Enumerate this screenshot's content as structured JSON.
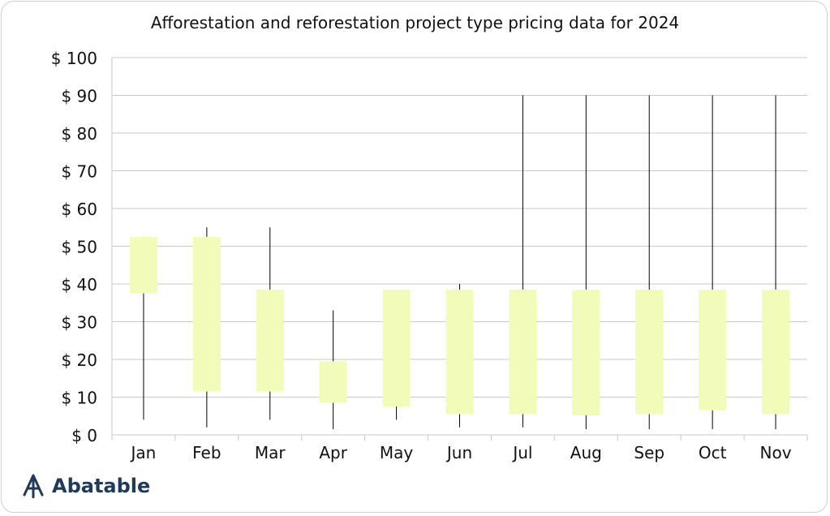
{
  "title": "Afforestation and reforestation project type pricing data for 2024",
  "brand": {
    "name": "Abatable",
    "icon": "abatable-logo-icon",
    "color": "#1f3a5a"
  },
  "colors": {
    "box": "#f2fcb8",
    "whisker": "#000000",
    "grid": "#c8c8c8"
  },
  "chart_data": {
    "type": "box",
    "title": "Afforestation and reforestation project type pricing data for 2024",
    "categories": [
      "Jan",
      "Feb",
      "Mar",
      "Apr",
      "May",
      "Jun",
      "Jul",
      "Aug",
      "Sep",
      "Oct",
      "Nov"
    ],
    "min": [
      4,
      2,
      4,
      1.5,
      4,
      2,
      2,
      1.5,
      1.5,
      1.5,
      1.5
    ],
    "box_low": [
      37.5,
      11.5,
      11.5,
      8.5,
      7.5,
      5.5,
      5.5,
      5.2,
      5.5,
      6.5,
      5.5
    ],
    "box_high": [
      52.5,
      52.5,
      38.5,
      19.5,
      38.5,
      38.5,
      38.5,
      38.5,
      38.5,
      38.5,
      38.5
    ],
    "max": [
      52.5,
      55,
      55,
      33,
      38.5,
      40,
      90,
      90,
      90,
      90,
      90
    ],
    "y_ticks": [
      "$ 0",
      "$ 10",
      "$ 20",
      "$ 30",
      "$ 40",
      "$ 50",
      "$ 60",
      "$ 70",
      "$ 80",
      "$ 90",
      "$ 100"
    ],
    "ylim": [
      0,
      100
    ],
    "grid": true
  }
}
